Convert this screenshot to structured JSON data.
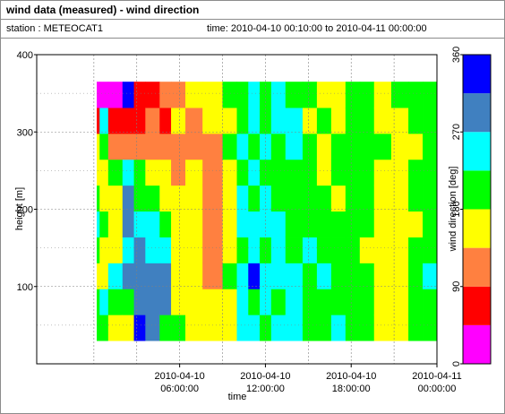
{
  "header": {
    "title": "wind data (measured) - wind direction",
    "station": "station : METEOCAT1",
    "time_range": "time: 2010-04-10 00:10:00 to 2010-04-11 00:00:00"
  },
  "chart_data": {
    "type": "heatmap",
    "title": "wind data (measured) - wind direction",
    "xlabel": "time",
    "ylabel": "height [m]",
    "colorbar_label": "wind direction [deg]",
    "x_range_hours": [
      -4,
      24
    ],
    "x_ticks": [
      {
        "hours": 6,
        "line1": "2010-04-10",
        "line2": "06:00:00"
      },
      {
        "hours": 12,
        "line1": "2010-04-10",
        "line2": "12:00:00"
      },
      {
        "hours": 18,
        "line1": "2010-04-10",
        "line2": "18:00:00"
      },
      {
        "hours": 24,
        "line1": "2010-04-11",
        "line2": "00:00:00"
      }
    ],
    "y_range": [
      0,
      400
    ],
    "y_ticks": [
      100,
      200,
      300,
      400
    ],
    "data_height_range": [
      30,
      365
    ],
    "grid": true,
    "colorbar": {
      "range": [
        0,
        360
      ],
      "ticks": [
        0,
        90,
        180,
        270,
        360
      ],
      "bins": [
        {
          "from": 0,
          "to": 45,
          "color": "#ff00ff"
        },
        {
          "from": 45,
          "to": 90,
          "color": "#ff0000"
        },
        {
          "from": 90,
          "to": 135,
          "color": "#ff8040"
        },
        {
          "from": 135,
          "to": 180,
          "color": "#ffff00"
        },
        {
          "from": 180,
          "to": 225,
          "color": "#00ff00"
        },
        {
          "from": 225,
          "to": 270,
          "color": "#00ffff"
        },
        {
          "from": 270,
          "to": 315,
          "color": "#4080c0"
        },
        {
          "from": 315,
          "to": 360,
          "color": "#0000ff"
        }
      ]
    },
    "segments": [
      {
        "from_h": 0.2,
        "to_h": 0.4,
        "dirs": [
          200,
          200,
          160,
          200,
          240,
          220,
          160,
          160,
          60,
          20
        ]
      },
      {
        "from_h": 0.4,
        "to_h": 1.0,
        "dirs": [
          200,
          240,
          160,
          160,
          200,
          160,
          160,
          200,
          240,
          20
        ]
      },
      {
        "from_h": 1.0,
        "to_h": 2.0,
        "dirs": [
          160,
          200,
          240,
          160,
          160,
          160,
          200,
          110,
          60,
          20
        ]
      },
      {
        "from_h": 2.0,
        "to_h": 2.8,
        "dirs": [
          160,
          200,
          290,
          240,
          290,
          290,
          240,
          110,
          60,
          340
        ]
      },
      {
        "from_h": 2.8,
        "to_h": 3.6,
        "dirs": [
          340,
          290,
          290,
          290,
          240,
          200,
          200,
          110,
          60,
          60
        ]
      },
      {
        "from_h": 3.6,
        "to_h": 4.6,
        "dirs": [
          290,
          290,
          290,
          240,
          240,
          200,
          160,
          110,
          110,
          60
        ]
      },
      {
        "from_h": 4.6,
        "to_h": 5.4,
        "dirs": [
          200,
          290,
          290,
          240,
          200,
          160,
          160,
          110,
          60,
          110
        ]
      },
      {
        "from_h": 5.4,
        "to_h": 6.4,
        "dirs": [
          200,
          160,
          160,
          160,
          160,
          160,
          110,
          110,
          160,
          110
        ]
      },
      {
        "from_h": 6.4,
        "to_h": 7.6,
        "dirs": [
          160,
          160,
          160,
          160,
          160,
          160,
          160,
          110,
          110,
          160
        ]
      },
      {
        "from_h": 7.6,
        "to_h": 9.0,
        "dirs": [
          160,
          160,
          110,
          110,
          110,
          110,
          110,
          110,
          160,
          160
        ]
      },
      {
        "from_h": 9.0,
        "to_h": 10.0,
        "dirs": [
          160,
          160,
          200,
          160,
          160,
          160,
          160,
          200,
          160,
          200
        ]
      },
      {
        "from_h": 10.0,
        "to_h": 10.8,
        "dirs": [
          240,
          240,
          240,
          200,
          240,
          240,
          200,
          240,
          200,
          200
        ]
      },
      {
        "from_h": 10.8,
        "to_h": 11.6,
        "dirs": [
          240,
          200,
          340,
          240,
          240,
          200,
          240,
          200,
          240,
          240
        ]
      },
      {
        "from_h": 11.6,
        "to_h": 12.4,
        "dirs": [
          200,
          240,
          240,
          200,
          240,
          240,
          200,
          240,
          200,
          200
        ]
      },
      {
        "from_h": 12.4,
        "to_h": 13.4,
        "dirs": [
          240,
          200,
          240,
          240,
          240,
          200,
          200,
          200,
          240,
          240
        ]
      },
      {
        "from_h": 13.4,
        "to_h": 14.6,
        "dirs": [
          240,
          240,
          240,
          200,
          200,
          200,
          200,
          240,
          240,
          200
        ]
      },
      {
        "from_h": 14.6,
        "to_h": 15.6,
        "dirs": [
          200,
          200,
          200,
          240,
          200,
          200,
          200,
          200,
          160,
          200
        ]
      },
      {
        "from_h": 15.6,
        "to_h": 16.6,
        "dirs": [
          200,
          200,
          240,
          200,
          200,
          200,
          160,
          160,
          200,
          160
        ]
      },
      {
        "from_h": 16.6,
        "to_h": 17.6,
        "dirs": [
          240,
          200,
          200,
          200,
          200,
          160,
          200,
          200,
          160,
          160
        ]
      },
      {
        "from_h": 17.6,
        "to_h": 18.6,
        "dirs": [
          200,
          200,
          200,
          200,
          200,
          200,
          200,
          200,
          200,
          200
        ]
      },
      {
        "from_h": 18.6,
        "to_h": 19.6,
        "dirs": [
          200,
          200,
          200,
          160,
          200,
          200,
          200,
          200,
          200,
          200
        ]
      },
      {
        "from_h": 19.6,
        "to_h": 20.8,
        "dirs": [
          160,
          160,
          160,
          160,
          160,
          160,
          160,
          200,
          160,
          160
        ]
      },
      {
        "from_h": 20.8,
        "to_h": 22.0,
        "dirs": [
          160,
          160,
          160,
          160,
          160,
          160,
          160,
          160,
          160,
          200
        ]
      },
      {
        "from_h": 22.0,
        "to_h": 23.0,
        "dirs": [
          200,
          200,
          200,
          200,
          160,
          200,
          200,
          160,
          200,
          200
        ]
      },
      {
        "from_h": 23.0,
        "to_h": 24.0,
        "dirs": [
          200,
          200,
          240,
          200,
          200,
          200,
          200,
          200,
          200,
          200
        ]
      }
    ]
  }
}
